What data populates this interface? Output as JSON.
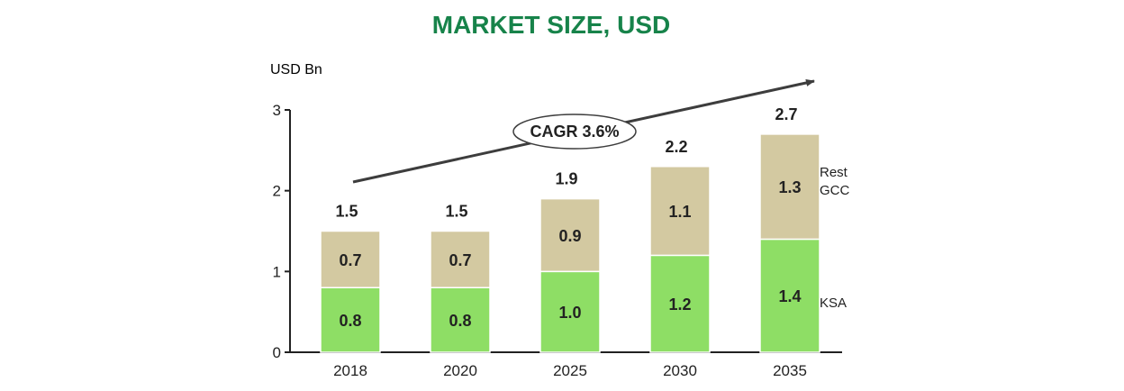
{
  "colors": {
    "title": "#17834a",
    "ksa": "#8ede65",
    "rest_gcc": "#d3c9a1",
    "axis": "#222222",
    "arrow": "#3d3d3d",
    "text": "#222222"
  },
  "chart_data": {
    "type": "bar",
    "stacked": true,
    "title": "MARKET SIZE, USD",
    "ylabel": "USD Bn",
    "xlabel": "",
    "ylim": [
      0,
      3
    ],
    "yticks": [
      "0",
      "1",
      "2",
      "3"
    ],
    "categories": [
      "2018",
      "2020",
      "2025",
      "2030",
      "2035"
    ],
    "series": [
      {
        "name": "KSA",
        "values": [
          0.8,
          0.8,
          1.0,
          1.2,
          1.4
        ],
        "labels": [
          "0.8",
          "0.8",
          "1.0",
          "1.2",
          "1.4"
        ]
      },
      {
        "name": "Rest GCC",
        "values": [
          0.7,
          0.7,
          0.9,
          1.1,
          1.3
        ],
        "labels": [
          "0.7",
          "0.7",
          "0.9",
          "1.1",
          "1.3"
        ]
      }
    ],
    "totals": [
      1.5,
      1.5,
      1.9,
      2.2,
      2.7
    ],
    "total_labels": [
      "1.5",
      "1.5",
      "1.9",
      "2.2",
      "2.7"
    ],
    "legend": {
      "placement": "right",
      "entries": [
        "Rest GCC",
        "KSA"
      ]
    },
    "annotation": {
      "text": "CAGR 3.6%",
      "shape": "oval with upward trend arrow"
    },
    "grid": false
  }
}
